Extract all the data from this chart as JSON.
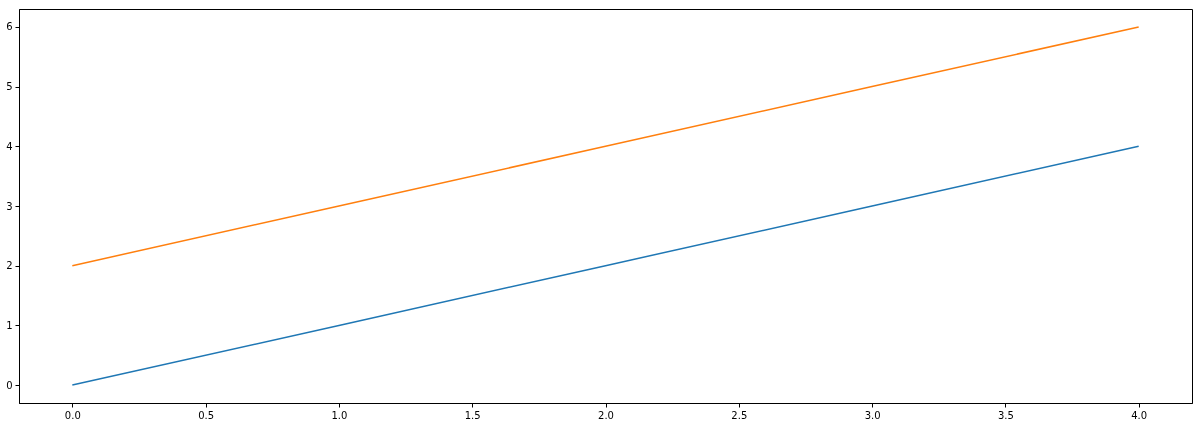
{
  "chart_data": {
    "type": "line",
    "x": [
      0,
      1,
      2,
      3,
      4
    ],
    "series": [
      {
        "color": "#1f77b4",
        "values": [
          0,
          1,
          2,
          3,
          4
        ]
      },
      {
        "color": "#ff7f0e",
        "values": [
          2,
          3,
          4,
          5,
          6
        ]
      }
    ],
    "xlim": [
      -0.2,
      4.2
    ],
    "ylim": [
      -0.3,
      6.3
    ],
    "xticks": [
      {
        "value": 0,
        "label": "0.0"
      },
      {
        "value": 0.5,
        "label": "0.5"
      },
      {
        "value": 1,
        "label": "1.0"
      },
      {
        "value": 1.5,
        "label": "1.5"
      },
      {
        "value": 2,
        "label": "2.0"
      },
      {
        "value": 2.5,
        "label": "2.5"
      },
      {
        "value": 3,
        "label": "3.0"
      },
      {
        "value": 3.5,
        "label": "3.5"
      },
      {
        "value": 4,
        "label": "4.0"
      }
    ],
    "yticks": [
      0,
      1,
      2,
      3,
      4,
      5,
      6
    ],
    "grid": false,
    "legend": false,
    "marker": "none",
    "line_style": "solid"
  }
}
